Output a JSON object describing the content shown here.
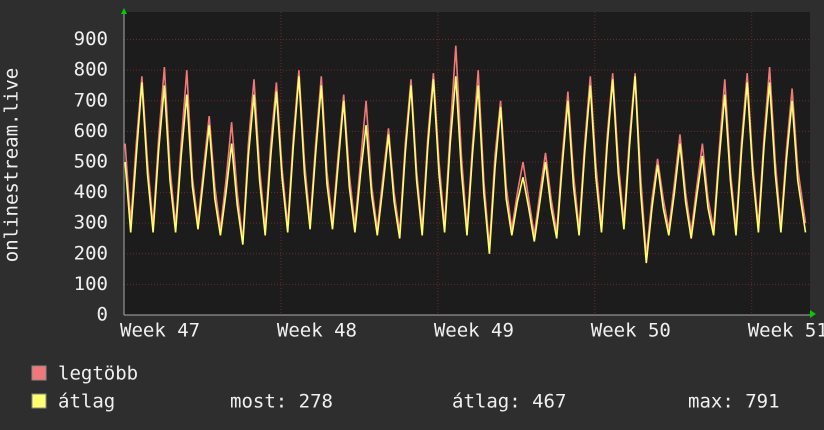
{
  "chart_data": {
    "type": "line",
    "y_label": "onlinestream.live",
    "x": [
      0.05,
      0.3,
      0.55,
      0.8,
      1.05,
      1.3,
      1.55,
      1.8,
      2.05,
      2.3,
      2.55,
      2.8,
      3.05,
      3.3,
      3.55,
      3.8,
      4.05,
      4.3,
      4.55,
      4.8,
      5.05,
      5.3,
      5.55,
      5.8,
      6.05,
      6.3,
      6.55,
      6.8,
      7.05,
      7.3,
      7.55,
      7.8,
      8.05,
      8.3,
      8.55,
      8.8,
      9.05,
      9.3,
      9.55,
      9.8,
      10.05,
      10.3,
      10.55,
      10.8,
      11.05,
      11.3,
      11.55,
      11.8,
      12.05,
      12.3,
      12.55,
      12.8,
      13.05,
      13.3,
      13.55,
      13.8,
      14.05,
      14.3,
      14.55,
      14.8,
      15.05,
      15.3,
      15.55,
      15.8,
      16.05,
      16.3,
      16.55,
      16.8,
      17.05,
      17.3,
      17.55,
      17.8,
      18.05,
      18.3,
      18.55,
      18.8,
      19.05,
      19.3,
      19.55,
      19.8,
      20.05,
      20.3,
      20.55,
      20.8,
      21.05,
      21.3,
      21.55,
      21.8,
      22.05,
      22.3,
      22.55,
      22.8,
      23.05,
      23.3,
      23.55,
      23.8,
      24.05,
      24.3,
      24.55,
      24.8,
      25.05,
      25.3,
      25.55,
      25.8,
      26.05,
      26.3,
      26.55,
      26.8,
      27.05,
      27.3,
      27.55,
      27.8,
      28.05,
      28.3,
      28.55,
      28.8,
      29.05,
      29.3,
      29.55,
      29.8,
      30.05,
      30.4
    ],
    "series": [
      {
        "name": "legtöbb",
        "color": "#f07878",
        "values": [
          560,
          300,
          560,
          780,
          500,
          290,
          580,
          810,
          480,
          290,
          560,
          800,
          450,
          300,
          480,
          650,
          420,
          280,
          440,
          630,
          400,
          240,
          560,
          770,
          480,
          280,
          560,
          760,
          480,
          290,
          580,
          800,
          500,
          300,
          560,
          780,
          470,
          300,
          520,
          720,
          460,
          290,
          500,
          700,
          420,
          280,
          450,
          610,
          400,
          270,
          560,
          770,
          470,
          280,
          580,
          790,
          500,
          290,
          600,
          880,
          520,
          280,
          560,
          800,
          440,
          220,
          520,
          700,
          420,
          280,
          400,
          500,
          380,
          260,
          400,
          530,
          380,
          270,
          520,
          730,
          460,
          280,
          560,
          780,
          490,
          290,
          580,
          790,
          500,
          300,
          580,
          790,
          450,
          190,
          380,
          510,
          380,
          280,
          430,
          590,
          400,
          270,
          420,
          560,
          380,
          280,
          540,
          770,
          470,
          280,
          570,
          790,
          490,
          290,
          580,
          810,
          500,
          290,
          540,
          740,
          480,
          300
        ]
      },
      {
        "name": "átlag",
        "color": "#ffff70",
        "values": [
          500,
          270,
          520,
          760,
          460,
          270,
          540,
          750,
          440,
          270,
          520,
          720,
          420,
          280,
          450,
          620,
          380,
          260,
          400,
          560,
          360,
          230,
          520,
          720,
          440,
          260,
          520,
          730,
          450,
          270,
          550,
          780,
          460,
          280,
          530,
          750,
          430,
          280,
          490,
          700,
          420,
          270,
          460,
          620,
          390,
          260,
          420,
          590,
          370,
          250,
          530,
          750,
          440,
          260,
          550,
          770,
          460,
          270,
          560,
          780,
          470,
          260,
          530,
          750,
          400,
          200,
          480,
          680,
          380,
          260,
          370,
          450,
          350,
          240,
          370,
          500,
          350,
          250,
          490,
          700,
          420,
          260,
          530,
          750,
          450,
          270,
          550,
          770,
          460,
          280,
          550,
          780,
          400,
          170,
          350,
          490,
          350,
          260,
          400,
          560,
          370,
          250,
          390,
          520,
          350,
          260,
          510,
          720,
          440,
          260,
          540,
          760,
          460,
          270,
          550,
          760,
          460,
          270,
          510,
          700,
          440,
          270
        ]
      }
    ],
    "xlim": [
      0,
      30.6
    ],
    "xticks": [
      {
        "value": 0,
        "label": "Week 47"
      },
      {
        "value": 7,
        "label": "Week 48"
      },
      {
        "value": 14,
        "label": "Week 49"
      },
      {
        "value": 21,
        "label": "Week 50"
      },
      {
        "value": 28,
        "label": "Week 51"
      }
    ],
    "ylim": [
      0,
      990
    ],
    "yticks": [
      0,
      100,
      200,
      300,
      400,
      500,
      600,
      700,
      800,
      900
    ],
    "grid": true,
    "stats": [
      "most: 278",
      "átlag: 467",
      "max: 791"
    ]
  }
}
